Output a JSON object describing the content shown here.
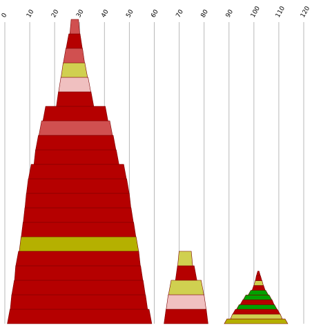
{
  "chart_data": {
    "type": "area",
    "xlim": [
      0,
      120
    ],
    "x_ticks": [
      0,
      10,
      20,
      30,
      40,
      50,
      60,
      70,
      80,
      90,
      100,
      110,
      120
    ],
    "x_tick_labels": [
      "0",
      "10",
      "20",
      "30",
      "40",
      "50",
      "60",
      "70",
      "80",
      "90",
      "100",
      "110",
      "120"
    ],
    "grid": true,
    "legend": "none",
    "shapes": [
      {
        "name": "",
        "bands": [
          {
            "left": 1.0,
            "right": 59.0,
            "color": "#b50000"
          },
          {
            "left": 2.2,
            "right": 57.3,
            "color": "#b50000"
          },
          {
            "left": 2.8,
            "right": 56.4,
            "color": "#b50000"
          },
          {
            "left": 3.9,
            "right": 55.4,
            "color": "#b50000"
          },
          {
            "left": 4.4,
            "right": 54.4,
            "color": "#b50000"
          },
          {
            "left": 5.8,
            "right": 53.7,
            "color": "#b5b000"
          },
          {
            "left": 6.6,
            "right": 52.6,
            "color": "#b50000"
          },
          {
            "left": 7.4,
            "right": 51.6,
            "color": "#b50000"
          },
          {
            "left": 8.1,
            "right": 50.6,
            "color": "#b50000"
          },
          {
            "left": 8.7,
            "right": 49.9,
            "color": "#b50000"
          },
          {
            "left": 9.5,
            "right": 48.8,
            "color": "#b50000"
          },
          {
            "left": 11.7,
            "right": 45.8,
            "color": "#b50000"
          },
          {
            "left": 12.4,
            "right": 44.6,
            "color": "#b50000"
          },
          {
            "left": 13.7,
            "right": 43.2,
            "color": "#d05050"
          },
          {
            "left": 15.3,
            "right": 41.4,
            "color": "#b50000"
          },
          {
            "left": 20.7,
            "right": 35.7,
            "color": "#b50000"
          },
          {
            "left": 21.6,
            "right": 34.5,
            "color": "#f0c0c0"
          },
          {
            "left": 22.6,
            "right": 33.2,
            "color": "#d0d050"
          },
          {
            "left": 23.5,
            "right": 32.0,
            "color": "#d05050"
          },
          {
            "left": 24.6,
            "right": 31.1,
            "color": "#b50000"
          },
          {
            "left": 26.1,
            "right": 30.1,
            "color": "#d05050"
          }
        ]
      },
      {
        "name": "",
        "bands": [
          {
            "left": 63.9,
            "right": 81.6,
            "color": "#b50000"
          },
          {
            "left": 64.8,
            "right": 80.8,
            "color": "#f0c0c0"
          },
          {
            "left": 65.7,
            "right": 79.9,
            "color": "#d0d050"
          },
          {
            "left": 68.5,
            "right": 77.1,
            "color": "#b50000"
          },
          {
            "left": 69.4,
            "right": 75.4,
            "color": "#d0d050"
          }
        ]
      },
      {
        "name": "",
        "bands": [
          {
            "left": 88.1,
            "right": 113.6,
            "color": "#b5b000"
          },
          {
            "left": 90.6,
            "right": 111.4,
            "color": "#d0d050"
          },
          {
            "left": 91.5,
            "right": 110.5,
            "color": "#b50000"
          },
          {
            "left": 93.0,
            "right": 109.3,
            "color": "#00a000"
          },
          {
            "left": 94.5,
            "right": 108.1,
            "color": "#b50000"
          },
          {
            "left": 95.7,
            "right": 107.2,
            "color": "#00a000"
          },
          {
            "left": 97.7,
            "right": 105.8,
            "color": "#00a000"
          },
          {
            "left": 99.3,
            "right": 104.5,
            "color": "#b50000"
          },
          {
            "left": 100.0,
            "right": 103.8,
            "color": "#d0d050"
          },
          {
            "left": 100.6,
            "right": 103.2,
            "color": "#b50000"
          },
          {
            "left": 101.0,
            "right": 102.6,
            "color": "#b50000"
          }
        ]
      }
    ]
  }
}
